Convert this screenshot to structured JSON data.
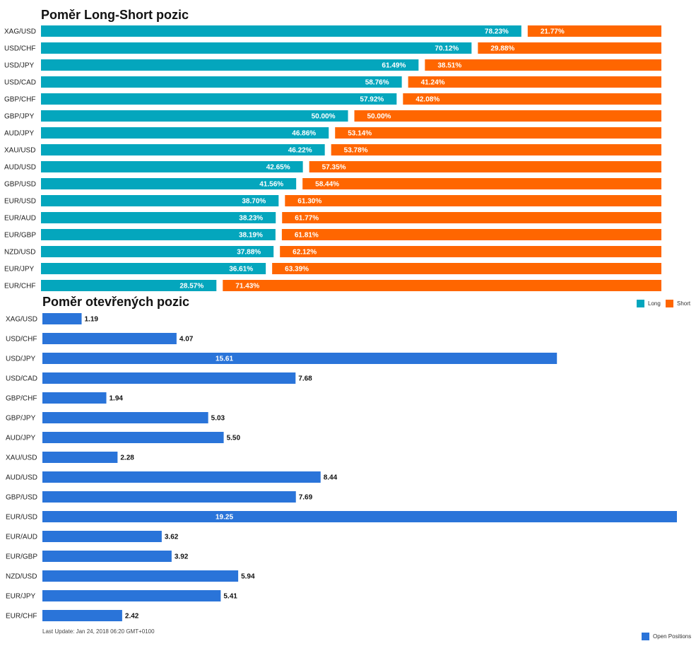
{
  "colors": {
    "long": "#04a6bd",
    "short": "#ff6600",
    "open": "#2a74d9"
  },
  "chart_data": [
    {
      "type": "bar",
      "orientation": "horizontal",
      "stacked": true,
      "title": "Poměr Long-Short pozic",
      "categories": [
        "XAG/USD",
        "USD/CHF",
        "USD/JPY",
        "USD/CAD",
        "GBP/CHF",
        "GBP/JPY",
        "AUD/JPY",
        "XAU/USD",
        "AUD/USD",
        "GBP/USD",
        "EUR/USD",
        "EUR/AUD",
        "EUR/GBP",
        "NZD/USD",
        "EUR/JPY",
        "EUR/CHF"
      ],
      "series": [
        {
          "name": "Long",
          "values": [
            78.23,
            70.12,
            61.49,
            58.76,
            57.92,
            50.0,
            46.86,
            46.22,
            42.65,
            41.56,
            38.7,
            38.23,
            38.19,
            37.88,
            36.61,
            28.57
          ]
        },
        {
          "name": "Short",
          "values": [
            21.77,
            29.88,
            38.51,
            41.24,
            42.08,
            50.0,
            53.14,
            53.78,
            57.35,
            58.44,
            61.3,
            61.77,
            61.81,
            62.12,
            63.39,
            71.43
          ]
        }
      ],
      "unit": "%",
      "legend": "top-right"
    },
    {
      "type": "bar",
      "orientation": "horizontal",
      "title": "Poměr otevřených pozic",
      "categories": [
        "XAG/USD",
        "USD/CHF",
        "USD/JPY",
        "USD/CAD",
        "GBP/CHF",
        "GBP/JPY",
        "AUD/JPY",
        "XAU/USD",
        "AUD/USD",
        "GBP/USD",
        "EUR/USD",
        "EUR/AUD",
        "EUR/GBP",
        "NZD/USD",
        "EUR/JPY",
        "EUR/CHF"
      ],
      "series": [
        {
          "name": "Open Positions",
          "values": [
            1.19,
            4.07,
            15.61,
            7.68,
            1.94,
            5.03,
            5.5,
            2.28,
            8.44,
            7.69,
            19.25,
            3.62,
            3.92,
            5.94,
            5.41,
            2.42
          ]
        }
      ],
      "legend": "bottom-right"
    }
  ],
  "footer": {
    "last_update": "Last Update: Jan 24, 2018 06:20 GMT+0100"
  }
}
